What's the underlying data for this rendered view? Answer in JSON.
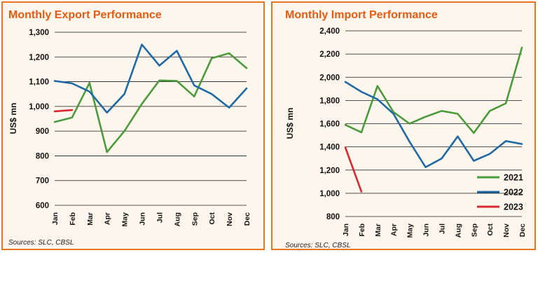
{
  "chart_data": [
    {
      "type": "line",
      "title": "Monthly Export Performance",
      "ylabel": "US$ mn",
      "xlabel": "",
      "source": "Sources: SLC, CBSL",
      "categories": [
        "Jan",
        "Feb",
        "Mar",
        "Apr",
        "May",
        "Jun",
        "Jul",
        "Aug",
        "Sep",
        "Oct",
        "Nov",
        "Dec"
      ],
      "ylim": [
        600,
        1300
      ],
      "yticks": [
        600,
        700,
        800,
        900,
        1000,
        1100,
        1200,
        1300
      ],
      "ytick_labels": [
        "600",
        "700",
        "800",
        "900",
        "1,000",
        "1,100",
        "1,200",
        "1,300"
      ],
      "grid": true,
      "legend": "none",
      "series": [
        {
          "name": "2021",
          "color": "#4c9a3e",
          "values": [
            937,
            955,
            1095,
            815,
            900,
            1010,
            1105,
            1103,
            1040,
            1195,
            1215,
            1155
          ]
        },
        {
          "name": "2022",
          "color": "#1f6aa5",
          "values": [
            1103,
            1093,
            1060,
            975,
            1050,
            1250,
            1165,
            1225,
            1085,
            1050,
            995,
            1073
          ]
        },
        {
          "name": "2023",
          "color": "#d9282f",
          "values": [
            980,
            985,
            null,
            null,
            null,
            null,
            null,
            null,
            null,
            null,
            null,
            null
          ]
        }
      ]
    },
    {
      "type": "line",
      "title": "Monthly Import Performance",
      "ylabel": "US$ mn",
      "xlabel": "",
      "source": "Sources: SLC, CBSL",
      "categories": [
        "Jan",
        "Feb",
        "Mar",
        "Apr",
        "May",
        "Jun",
        "Jul",
        "Aug",
        "Sep",
        "Oct",
        "Nov",
        "Dec"
      ],
      "ylim": [
        800,
        2400
      ],
      "yticks": [
        800,
        1000,
        1200,
        1400,
        1600,
        1800,
        2000,
        2200,
        2400
      ],
      "ytick_labels": [
        "800",
        "1,000",
        "1,200",
        "1,400",
        "1,600",
        "1,800",
        "2,000",
        "2,200",
        "2,400"
      ],
      "grid": true,
      "legend": "bottom-right",
      "series": [
        {
          "name": "2021",
          "color": "#4c9a3e",
          "values": [
            1590,
            1525,
            1925,
            1700,
            1600,
            1660,
            1710,
            1685,
            1520,
            1710,
            1775,
            2255
          ]
        },
        {
          "name": "2022",
          "color": "#1f6aa5",
          "values": [
            1960,
            1875,
            1810,
            1685,
            1445,
            1225,
            1300,
            1490,
            1280,
            1340,
            1450,
            1425
          ]
        },
        {
          "name": "2023",
          "color": "#d9282f",
          "values": [
            1395,
            1015,
            null,
            null,
            null,
            null,
            null,
            null,
            null,
            null,
            null,
            null
          ]
        }
      ]
    }
  ]
}
